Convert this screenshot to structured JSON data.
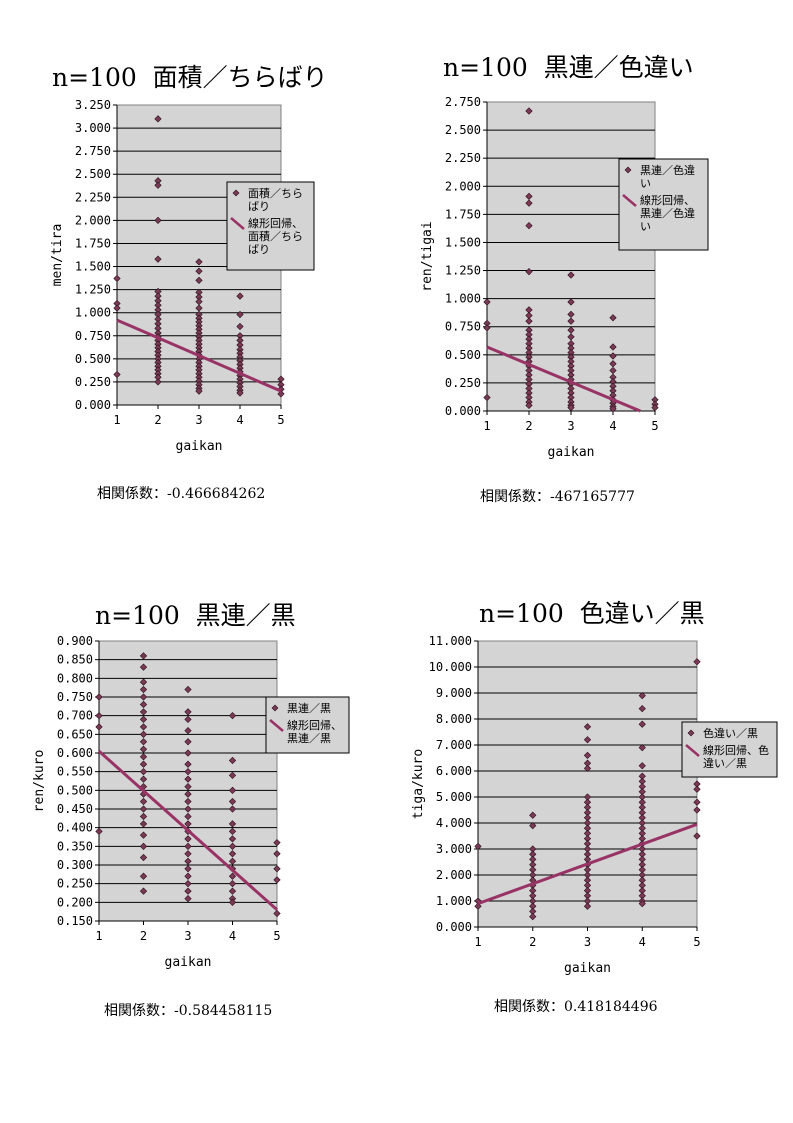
{
  "colors": {
    "plot_bg": "#d4d4d4",
    "marker": "#7a3a55",
    "trend": "#993366",
    "grid": "#000000"
  },
  "panels": [
    {
      "title_n": "n=100",
      "title_jp": "面積／ちらばり",
      "corr_label": "相関係数：",
      "corr_value": "-0.466684262"
    },
    {
      "title_n": "n=100",
      "title_jp": "黒連／色違い",
      "corr_label": "相関係数：",
      "corr_value": "-467165777"
    },
    {
      "title_n": "n=100",
      "title_jp": "黒連／黒",
      "corr_label": "相関係数：",
      "corr_value": "-0.584458115"
    },
    {
      "title_n": "n=100",
      "title_jp": "色違い／黒",
      "corr_label": "相関係数：",
      "corr_value": "0.418184496"
    }
  ],
  "chart_data": [
    {
      "type": "scatter",
      "ylabel": "men/tira",
      "xlabel": "gaikan",
      "xlim": [
        1,
        5
      ],
      "xticks": [
        "1",
        "2",
        "3",
        "4",
        "5"
      ],
      "ylim": [
        0,
        3.25
      ],
      "ystep": 0.25,
      "ydecimals": 3,
      "legend_placement": "right",
      "legend": [
        "面積／ちら|ばり",
        "線形回帰、|面積／ちら|ばり"
      ],
      "points": [
        [
          1,
          1.37
        ],
        [
          1,
          1.1
        ],
        [
          1,
          1.05
        ],
        [
          1,
          0.33
        ],
        [
          2,
          3.1
        ],
        [
          2,
          2.43
        ],
        [
          2,
          2.38
        ],
        [
          2,
          2.0
        ],
        [
          2,
          1.58
        ],
        [
          2,
          1.23
        ],
        [
          2,
          1.18
        ],
        [
          2,
          1.13
        ],
        [
          2,
          1.08
        ],
        [
          2,
          1.03
        ],
        [
          2,
          0.98
        ],
        [
          2,
          0.93
        ],
        [
          2,
          0.88
        ],
        [
          2,
          0.83
        ],
        [
          2,
          0.78
        ],
        [
          2,
          0.74
        ],
        [
          2,
          0.7
        ],
        [
          2,
          0.66
        ],
        [
          2,
          0.62
        ],
        [
          2,
          0.58
        ],
        [
          2,
          0.54
        ],
        [
          2,
          0.5
        ],
        [
          2,
          0.46
        ],
        [
          2,
          0.42
        ],
        [
          2,
          0.38
        ],
        [
          2,
          0.34
        ],
        [
          2,
          0.3
        ],
        [
          2,
          0.25
        ],
        [
          3,
          1.55
        ],
        [
          3,
          1.45
        ],
        [
          3,
          1.35
        ],
        [
          3,
          1.22
        ],
        [
          3,
          1.17
        ],
        [
          3,
          1.12
        ],
        [
          3,
          1.05
        ],
        [
          3,
          0.98
        ],
        [
          3,
          0.94
        ],
        [
          3,
          0.9
        ],
        [
          3,
          0.86
        ],
        [
          3,
          0.82
        ],
        [
          3,
          0.78
        ],
        [
          3,
          0.74
        ],
        [
          3,
          0.7
        ],
        [
          3,
          0.66
        ],
        [
          3,
          0.62
        ],
        [
          3,
          0.58
        ],
        [
          3,
          0.54
        ],
        [
          3,
          0.5
        ],
        [
          3,
          0.46
        ],
        [
          3,
          0.42
        ],
        [
          3,
          0.38
        ],
        [
          3,
          0.34
        ],
        [
          3,
          0.3
        ],
        [
          3,
          0.26
        ],
        [
          3,
          0.22
        ],
        [
          3,
          0.18
        ],
        [
          3,
          0.15
        ],
        [
          4,
          1.18
        ],
        [
          4,
          0.98
        ],
        [
          4,
          0.85
        ],
        [
          4,
          0.75
        ],
        [
          4,
          0.7
        ],
        [
          4,
          0.65
        ],
        [
          4,
          0.6
        ],
        [
          4,
          0.56
        ],
        [
          4,
          0.52
        ],
        [
          4,
          0.48
        ],
        [
          4,
          0.44
        ],
        [
          4,
          0.4
        ],
        [
          4,
          0.36
        ],
        [
          4,
          0.32
        ],
        [
          4,
          0.28
        ],
        [
          4,
          0.24
        ],
        [
          4,
          0.2
        ],
        [
          4,
          0.16
        ],
        [
          4,
          0.13
        ],
        [
          5,
          0.28
        ],
        [
          5,
          0.22
        ],
        [
          5,
          0.17
        ],
        [
          5,
          0.12
        ]
      ],
      "trend": [
        [
          1,
          0.92
        ],
        [
          5,
          0.15
        ]
      ]
    },
    {
      "type": "scatter",
      "ylabel": "ren/tigai",
      "xlabel": "gaikan",
      "xlim": [
        1,
        5
      ],
      "xticks": [
        "1",
        "2",
        "3",
        "4",
        "5"
      ],
      "ylim": [
        0,
        2.75
      ],
      "ystep": 0.25,
      "ydecimals": 3,
      "legend_placement": "right",
      "legend": [
        "黒連／色違|い",
        "線形回帰、|黒連／色違|い"
      ],
      "points": [
        [
          1,
          0.97
        ],
        [
          1,
          0.78
        ],
        [
          1,
          0.74
        ],
        [
          1,
          0.12
        ],
        [
          2,
          2.67
        ],
        [
          2,
          1.91
        ],
        [
          2,
          1.85
        ],
        [
          2,
          1.65
        ],
        [
          2,
          1.24
        ],
        [
          2,
          0.9
        ],
        [
          2,
          0.85
        ],
        [
          2,
          0.8
        ],
        [
          2,
          0.72
        ],
        [
          2,
          0.68
        ],
        [
          2,
          0.64
        ],
        [
          2,
          0.6
        ],
        [
          2,
          0.56
        ],
        [
          2,
          0.52
        ],
        [
          2,
          0.48
        ],
        [
          2,
          0.44
        ],
        [
          2,
          0.4
        ],
        [
          2,
          0.36
        ],
        [
          2,
          0.32
        ],
        [
          2,
          0.28
        ],
        [
          2,
          0.24
        ],
        [
          2,
          0.2
        ],
        [
          2,
          0.16
        ],
        [
          2,
          0.12
        ],
        [
          2,
          0.08
        ],
        [
          2,
          0.05
        ],
        [
          3,
          1.21
        ],
        [
          3,
          0.97
        ],
        [
          3,
          0.86
        ],
        [
          3,
          0.8
        ],
        [
          3,
          0.72
        ],
        [
          3,
          0.66
        ],
        [
          3,
          0.6
        ],
        [
          3,
          0.56
        ],
        [
          3,
          0.52
        ],
        [
          3,
          0.48
        ],
        [
          3,
          0.44
        ],
        [
          3,
          0.4
        ],
        [
          3,
          0.36
        ],
        [
          3,
          0.32
        ],
        [
          3,
          0.28
        ],
        [
          3,
          0.24
        ],
        [
          3,
          0.2
        ],
        [
          3,
          0.16
        ],
        [
          3,
          0.12
        ],
        [
          3,
          0.08
        ],
        [
          3,
          0.05
        ],
        [
          3,
          0.03
        ],
        [
          4,
          0.83
        ],
        [
          4,
          0.57
        ],
        [
          4,
          0.49
        ],
        [
          4,
          0.42
        ],
        [
          4,
          0.36
        ],
        [
          4,
          0.3
        ],
        [
          4,
          0.26
        ],
        [
          4,
          0.22
        ],
        [
          4,
          0.18
        ],
        [
          4,
          0.14
        ],
        [
          4,
          0.1
        ],
        [
          4,
          0.07
        ],
        [
          4,
          0.04
        ],
        [
          4,
          0.02
        ],
        [
          5,
          0.1
        ],
        [
          5,
          0.06
        ],
        [
          5,
          0.03
        ]
      ],
      "trend": [
        [
          1,
          0.57
        ],
        [
          4.65,
          0.0
        ]
      ]
    },
    {
      "type": "scatter",
      "ylabel": "ren/kuro",
      "xlabel": "gaikan",
      "xlim": [
        1,
        5
      ],
      "xticks": [
        "1",
        "2",
        "3",
        "4",
        "5"
      ],
      "ylim": [
        0.15,
        0.9
      ],
      "ystep": 0.05,
      "ydecimals": 3,
      "legend_placement": "right",
      "legend": [
        "黒連／黒",
        "線形回帰、|黒連／黒"
      ],
      "points": [
        [
          1,
          0.75
        ],
        [
          1,
          0.7
        ],
        [
          1,
          0.67
        ],
        [
          1,
          0.39
        ],
        [
          2,
          0.86
        ],
        [
          2,
          0.83
        ],
        [
          2,
          0.79
        ],
        [
          2,
          0.77
        ],
        [
          2,
          0.75
        ],
        [
          2,
          0.73
        ],
        [
          2,
          0.71
        ],
        [
          2,
          0.69
        ],
        [
          2,
          0.67
        ],
        [
          2,
          0.65
        ],
        [
          2,
          0.63
        ],
        [
          2,
          0.61
        ],
        [
          2,
          0.59
        ],
        [
          2,
          0.57
        ],
        [
          2,
          0.55
        ],
        [
          2,
          0.53
        ],
        [
          2,
          0.51
        ],
        [
          2,
          0.49
        ],
        [
          2,
          0.47
        ],
        [
          2,
          0.45
        ],
        [
          2,
          0.43
        ],
        [
          2,
          0.41
        ],
        [
          2,
          0.38
        ],
        [
          2,
          0.35
        ],
        [
          2,
          0.32
        ],
        [
          2,
          0.27
        ],
        [
          2,
          0.23
        ],
        [
          3,
          0.77
        ],
        [
          3,
          0.71
        ],
        [
          3,
          0.69
        ],
        [
          3,
          0.66
        ],
        [
          3,
          0.63
        ],
        [
          3,
          0.6
        ],
        [
          3,
          0.57
        ],
        [
          3,
          0.55
        ],
        [
          3,
          0.53
        ],
        [
          3,
          0.51
        ],
        [
          3,
          0.49
        ],
        [
          3,
          0.47
        ],
        [
          3,
          0.45
        ],
        [
          3,
          0.43
        ],
        [
          3,
          0.41
        ],
        [
          3,
          0.39
        ],
        [
          3,
          0.37
        ],
        [
          3,
          0.35
        ],
        [
          3,
          0.33
        ],
        [
          3,
          0.31
        ],
        [
          3,
          0.29
        ],
        [
          3,
          0.27
        ],
        [
          3,
          0.25
        ],
        [
          3,
          0.23
        ],
        [
          3,
          0.21
        ],
        [
          4,
          0.7
        ],
        [
          4,
          0.58
        ],
        [
          4,
          0.54
        ],
        [
          4,
          0.5
        ],
        [
          4,
          0.47
        ],
        [
          4,
          0.45
        ],
        [
          4,
          0.41
        ],
        [
          4,
          0.39
        ],
        [
          4,
          0.37
        ],
        [
          4,
          0.35
        ],
        [
          4,
          0.33
        ],
        [
          4,
          0.31
        ],
        [
          4,
          0.29
        ],
        [
          4,
          0.27
        ],
        [
          4,
          0.25
        ],
        [
          4,
          0.23
        ],
        [
          4,
          0.21
        ],
        [
          4,
          0.2
        ],
        [
          5,
          0.36
        ],
        [
          5,
          0.33
        ],
        [
          5,
          0.29
        ],
        [
          5,
          0.26
        ],
        [
          5,
          0.17
        ]
      ],
      "trend": [
        [
          1,
          0.605
        ],
        [
          5,
          0.18
        ]
      ]
    },
    {
      "type": "scatter",
      "ylabel": "tiga/kuro",
      "xlabel": "gaikan",
      "xlim": [
        1,
        5
      ],
      "xticks": [
        "1",
        "2",
        "3",
        "4",
        "5"
      ],
      "ylim": [
        0,
        11
      ],
      "ystep": 1,
      "ydecimals": 3,
      "legend_placement": "right",
      "legend": [
        "色違い／黒",
        "線形回帰、色|違い／黒"
      ],
      "points": [
        [
          1,
          3.1
        ],
        [
          1,
          1.0
        ],
        [
          1,
          0.8
        ],
        [
          2,
          4.3
        ],
        [
          2,
          3.9
        ],
        [
          2,
          3.0
        ],
        [
          2,
          2.8
        ],
        [
          2,
          2.6
        ],
        [
          2,
          2.4
        ],
        [
          2,
          2.2
        ],
        [
          2,
          2.0
        ],
        [
          2,
          1.8
        ],
        [
          2,
          1.6
        ],
        [
          2,
          1.4
        ],
        [
          2,
          1.2
        ],
        [
          2,
          1.0
        ],
        [
          2,
          0.8
        ],
        [
          2,
          0.6
        ],
        [
          2,
          0.4
        ],
        [
          3,
          7.7
        ],
        [
          3,
          7.2
        ],
        [
          3,
          6.6
        ],
        [
          3,
          6.3
        ],
        [
          3,
          6.1
        ],
        [
          3,
          5.0
        ],
        [
          3,
          4.8
        ],
        [
          3,
          4.6
        ],
        [
          3,
          4.4
        ],
        [
          3,
          4.2
        ],
        [
          3,
          4.0
        ],
        [
          3,
          3.8
        ],
        [
          3,
          3.6
        ],
        [
          3,
          3.4
        ],
        [
          3,
          3.2
        ],
        [
          3,
          3.0
        ],
        [
          3,
          2.8
        ],
        [
          3,
          2.6
        ],
        [
          3,
          2.4
        ],
        [
          3,
          2.2
        ],
        [
          3,
          2.0
        ],
        [
          3,
          1.8
        ],
        [
          3,
          1.6
        ],
        [
          3,
          1.4
        ],
        [
          3,
          1.2
        ],
        [
          3,
          1.0
        ],
        [
          3,
          0.8
        ],
        [
          4,
          8.9
        ],
        [
          4,
          8.4
        ],
        [
          4,
          7.8
        ],
        [
          4,
          6.9
        ],
        [
          4,
          6.2
        ],
        [
          4,
          5.8
        ],
        [
          4,
          5.6
        ],
        [
          4,
          5.4
        ],
        [
          4,
          5.2
        ],
        [
          4,
          5.0
        ],
        [
          4,
          4.8
        ],
        [
          4,
          4.6
        ],
        [
          4,
          4.4
        ],
        [
          4,
          4.2
        ],
        [
          4,
          4.0
        ],
        [
          4,
          3.8
        ],
        [
          4,
          3.6
        ],
        [
          4,
          3.4
        ],
        [
          4,
          3.2
        ],
        [
          4,
          3.0
        ],
        [
          4,
          2.8
        ],
        [
          4,
          2.6
        ],
        [
          4,
          2.4
        ],
        [
          4,
          2.2
        ],
        [
          4,
          2.0
        ],
        [
          4,
          1.8
        ],
        [
          4,
          1.6
        ],
        [
          4,
          1.4
        ],
        [
          4,
          1.2
        ],
        [
          4,
          1.0
        ],
        [
          4,
          0.9
        ],
        [
          5,
          10.2
        ],
        [
          5,
          5.5
        ],
        [
          5,
          5.3
        ],
        [
          5,
          4.8
        ],
        [
          5,
          4.5
        ],
        [
          5,
          3.5
        ]
      ],
      "trend": [
        [
          1,
          0.9
        ],
        [
          5,
          3.95
        ]
      ]
    }
  ]
}
